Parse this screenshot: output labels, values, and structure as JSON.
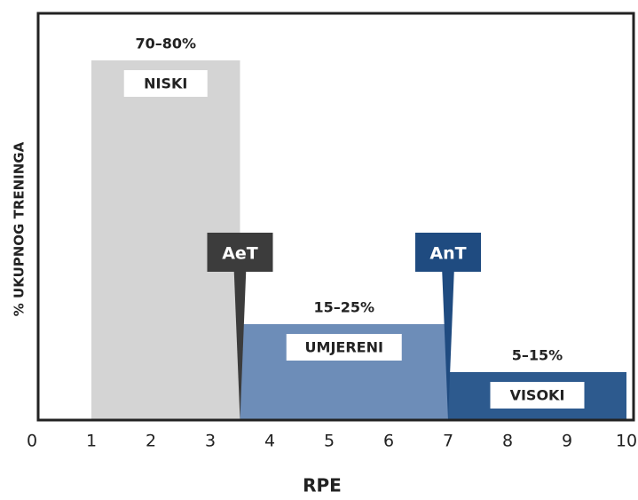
{
  "chart_data": {
    "type": "zones",
    "xlabel": "RPE",
    "ylabel": "% UKUPNOG TRENINGA",
    "xlim": [
      0,
      10
    ],
    "xticks": [
      0,
      1,
      2,
      3,
      4,
      5,
      6,
      7,
      8,
      9,
      10
    ],
    "ylim": [
      0,
      85
    ],
    "zones": [
      {
        "name": "NISKI",
        "x": [
          1,
          3.5
        ],
        "range": [
          70,
          80
        ],
        "value_label": "70–80%",
        "color": "#d4d4d4"
      },
      {
        "name": "UMJERENI",
        "x": [
          3.5,
          7
        ],
        "range": [
          15,
          25
        ],
        "value_label": "15–25%",
        "color": "#6d8db8"
      },
      {
        "name": "VISOKI",
        "x": [
          7,
          10
        ],
        "range": [
          5,
          15
        ],
        "value_label": "5–15%",
        "color": "#2d5a8e"
      }
    ],
    "markers": [
      {
        "label": "AeT",
        "x": 3.5,
        "color": "#3c3c3c"
      },
      {
        "label": "AnT",
        "x": 7,
        "color": "#1f4b80"
      }
    ]
  }
}
